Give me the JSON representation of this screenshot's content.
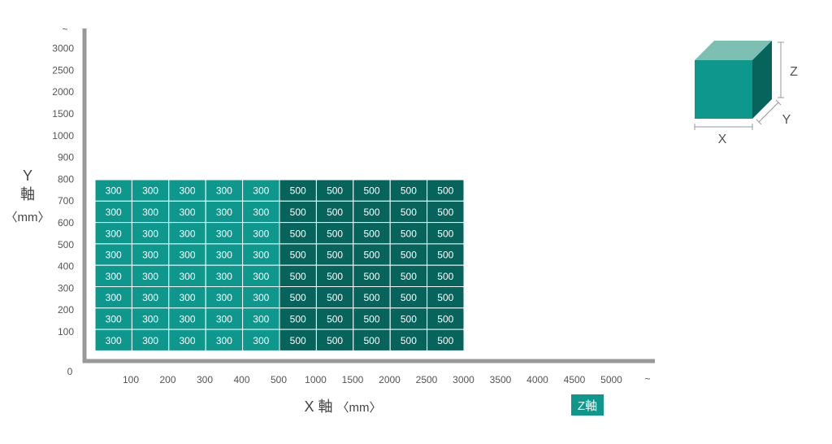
{
  "chart_data": {
    "type": "heatmap",
    "x_ticks": [
      "100",
      "200",
      "300",
      "400",
      "500",
      "1000",
      "1500",
      "2000",
      "2500",
      "3000",
      "3500",
      "4000",
      "4500",
      "5000",
      "~"
    ],
    "y_ticks": [
      "100",
      "200",
      "300",
      "400",
      "500",
      "600",
      "700",
      "800",
      "900",
      "1000",
      "1500",
      "2000",
      "2500",
      "3000",
      "~"
    ],
    "origin_label": "0",
    "x_axis_title": "X 軸",
    "x_axis_unit": "〈mm〉",
    "y_axis_title": "Y",
    "y_axis_title_2": "軸",
    "y_axis_unit": "〈mm〉",
    "z_axis_label": "Z軸",
    "z_values": [
      [
        300,
        300,
        300,
        300,
        300,
        500,
        500,
        500,
        500,
        500
      ],
      [
        300,
        300,
        300,
        300,
        300,
        500,
        500,
        500,
        500,
        500
      ],
      [
        300,
        300,
        300,
        300,
        300,
        500,
        500,
        500,
        500,
        500
      ],
      [
        300,
        300,
        300,
        300,
        300,
        500,
        500,
        500,
        500,
        500
      ],
      [
        300,
        300,
        300,
        300,
        300,
        500,
        500,
        500,
        500,
        500
      ],
      [
        300,
        300,
        300,
        300,
        300,
        500,
        500,
        500,
        500,
        500
      ],
      [
        300,
        300,
        300,
        300,
        300,
        500,
        500,
        500,
        500,
        500
      ],
      [
        300,
        300,
        300,
        300,
        300,
        500,
        500,
        500,
        500,
        500
      ]
    ],
    "z_row_y_values": [
      "800",
      "700",
      "600",
      "500",
      "400",
      "300",
      "200",
      "100"
    ],
    "z_col_x_values": [
      "100",
      "200",
      "300",
      "400",
      "500",
      "1000",
      "1500",
      "2000",
      "2500",
      "3000"
    ],
    "colors": {
      "300": "#0e978c",
      "500": "#06645c",
      "axis": "#999999",
      "z_legend_bg": "#0e978c"
    },
    "cube": {
      "x_label": "X",
      "y_label": "Y",
      "z_label": "Z",
      "front_color": "#0e978c",
      "top_color": "#7ebfb4",
      "side_color": "#06645c"
    }
  }
}
